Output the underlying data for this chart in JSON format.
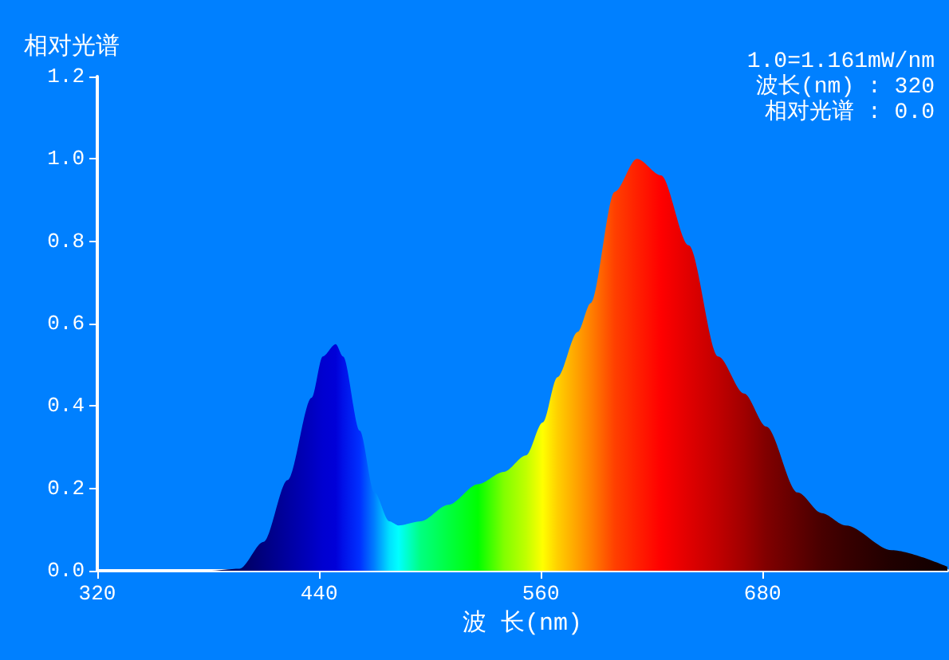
{
  "chart_data": {
    "type": "area",
    "ylabel": "相对光谱",
    "xlabel": "波 长(nm)",
    "annotations": [
      "1.0=1.161mW/nm",
      "波长(nm) : 320",
      "相对光谱 : 0.0"
    ],
    "x": [
      320,
      380,
      397,
      410,
      423,
      436,
      442,
      449,
      453,
      462,
      470,
      478,
      483,
      495,
      510,
      526,
      540,
      552,
      561,
      569,
      580,
      587,
      600,
      612,
      625,
      640,
      656,
      670,
      682,
      699,
      712,
      725,
      750,
      780
    ],
    "values": [
      0,
      0,
      0.005,
      0.07,
      0.22,
      0.42,
      0.52,
      0.55,
      0.52,
      0.34,
      0.19,
      0.12,
      0.11,
      0.12,
      0.16,
      0.21,
      0.24,
      0.28,
      0.36,
      0.47,
      0.58,
      0.65,
      0.92,
      1.0,
      0.96,
      0.79,
      0.52,
      0.43,
      0.35,
      0.19,
      0.14,
      0.11,
      0.05,
      0.01
    ],
    "colors": [
      "#000040",
      "#000040",
      "#000060",
      "#000080",
      "#0000a0",
      "#0000c0",
      "#0000d0",
      "#0000d8",
      "#0010e8",
      "#0030ff",
      "#0080ff",
      "#00e0ff",
      "#00ffff",
      "#00ff80",
      "#00ff40",
      "#00ff00",
      "#80ff00",
      "#c0ff00",
      "#ffff00",
      "#ffd000",
      "#ffa000",
      "#ff8000",
      "#ff4000",
      "#ff2000",
      "#ff0000",
      "#e00000",
      "#c00000",
      "#a00000",
      "#800000",
      "#600000",
      "#480000",
      "#380000",
      "#200000",
      "#100000"
    ],
    "xlim": [
      320,
      780
    ],
    "xticks": [
      320,
      440,
      560,
      680
    ],
    "ylim": [
      0,
      1.2
    ],
    "yticks": [
      {
        "value": 0,
        "label": "0.0"
      },
      {
        "value": 0.2,
        "label": "0.2"
      },
      {
        "value": 0.4,
        "label": "0.4"
      },
      {
        "value": 0.6,
        "label": "0.6"
      },
      {
        "value": 0.8,
        "label": "0.8"
      },
      {
        "value": 1.0,
        "label": "1.0"
      },
      {
        "value": 1.2,
        "label": "1.2"
      }
    ],
    "grid": false,
    "marker": "none"
  }
}
